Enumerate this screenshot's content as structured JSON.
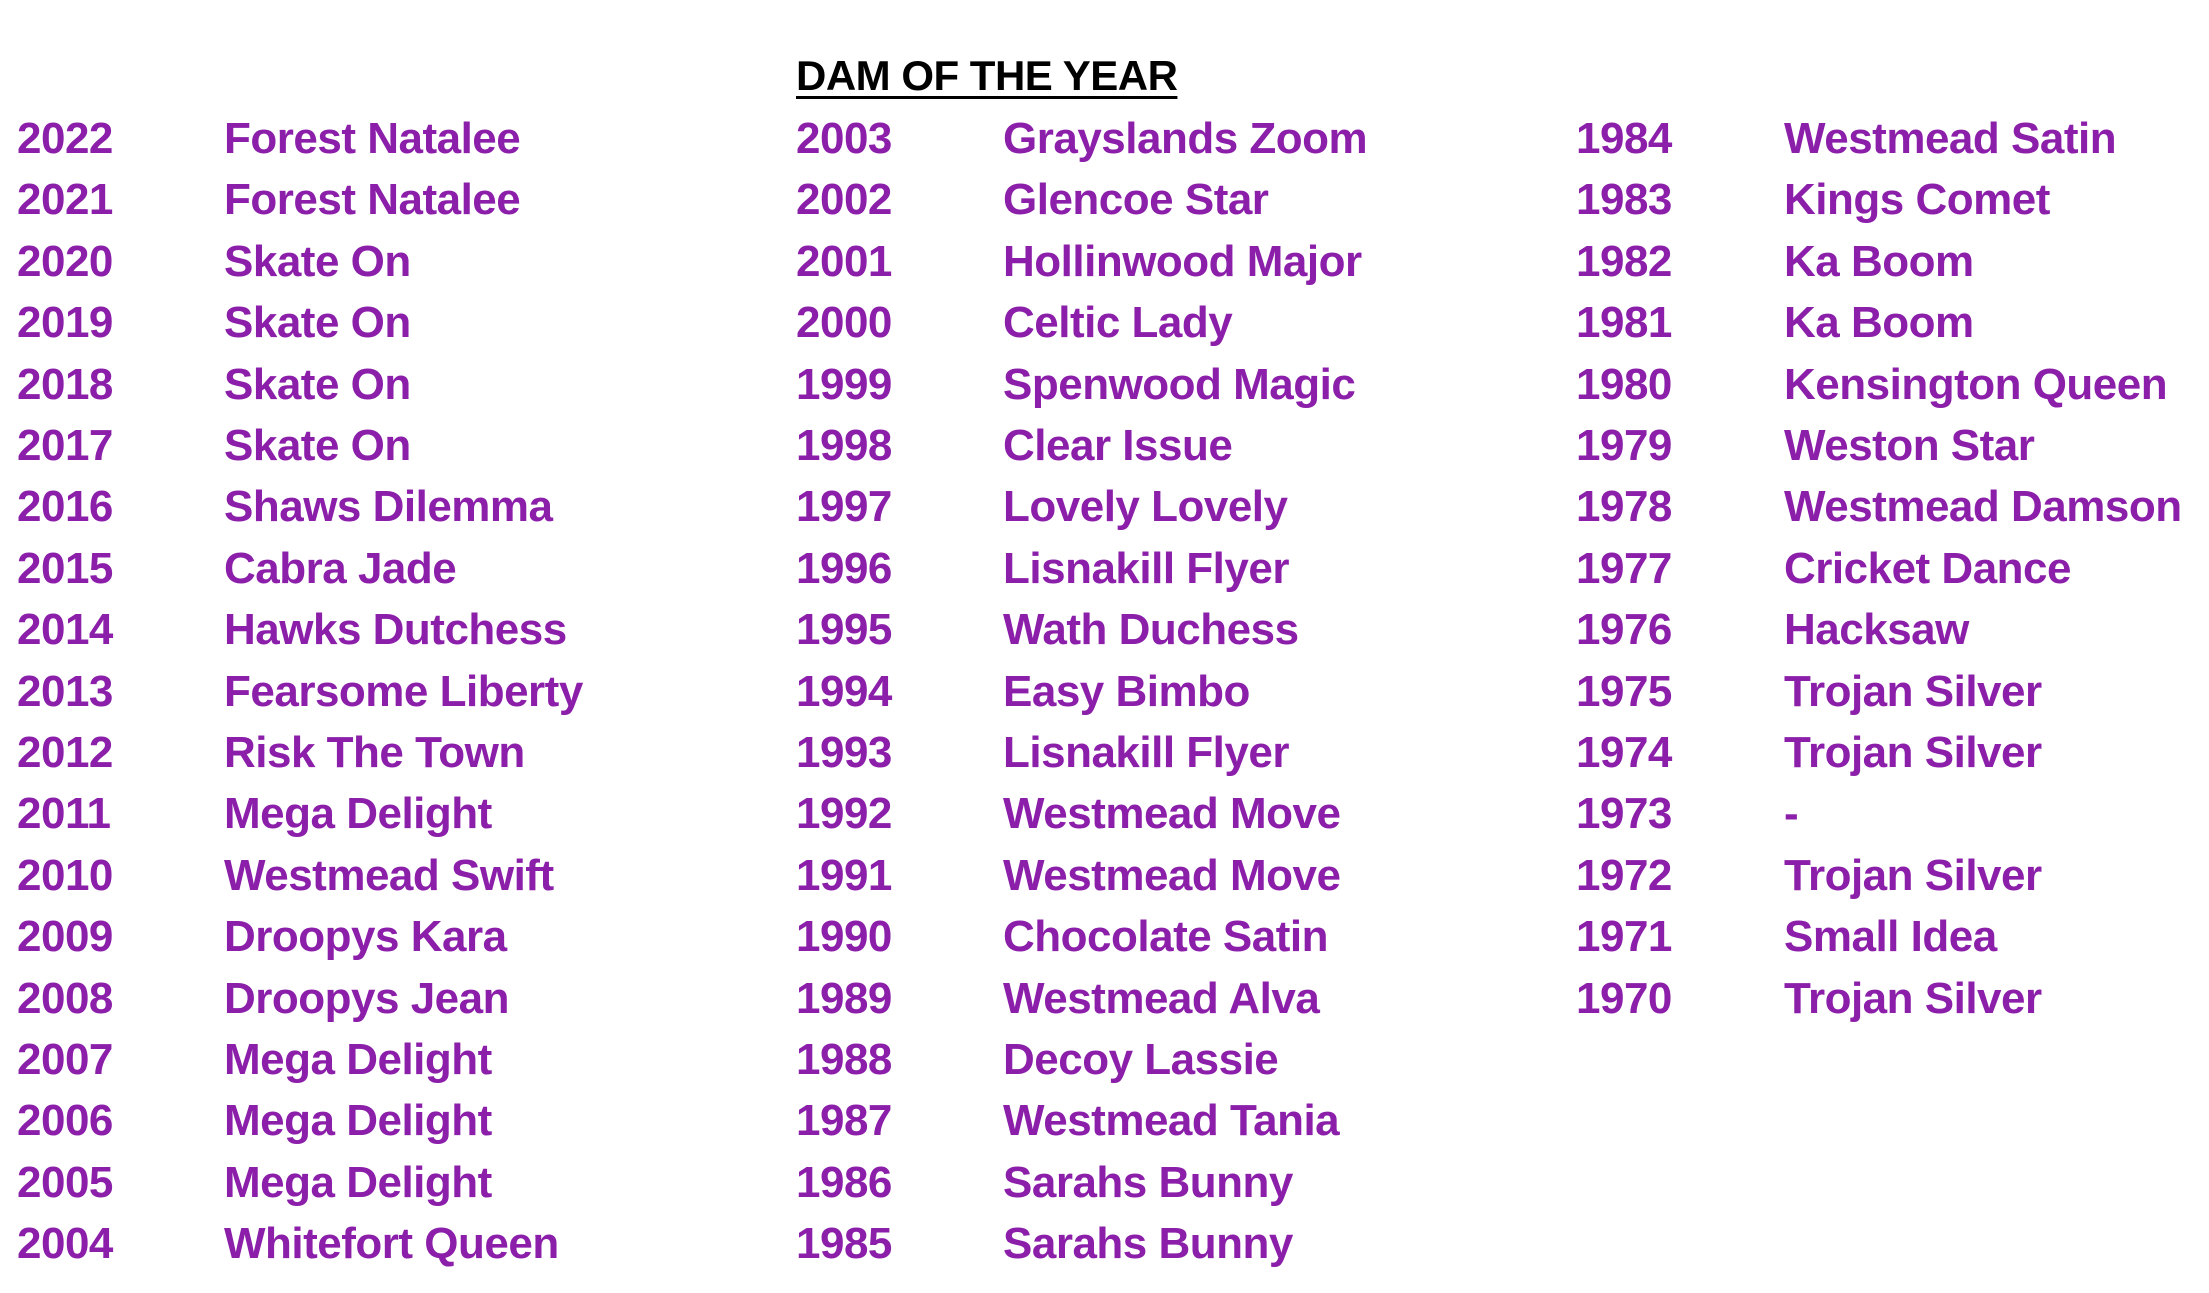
{
  "title": "DAM OF THE YEAR",
  "accent_color": "#8B1FA9",
  "columns": [
    [
      {
        "year": "2022",
        "name": "Forest Natalee"
      },
      {
        "year": "2021",
        "name": "Forest Natalee"
      },
      {
        "year": "2020",
        "name": "Skate On"
      },
      {
        "year": "2019",
        "name": "Skate On"
      },
      {
        "year": "2018",
        "name": "Skate On"
      },
      {
        "year": "2017",
        "name": "Skate On"
      },
      {
        "year": "2016",
        "name": "Shaws Dilemma"
      },
      {
        "year": "2015",
        "name": "Cabra Jade"
      },
      {
        "year": "2014",
        "name": "Hawks Dutchess"
      },
      {
        "year": "2013",
        "name": "Fearsome Liberty"
      },
      {
        "year": "2012",
        "name": "Risk The Town"
      },
      {
        "year": "2011",
        "name": "Mega Delight"
      },
      {
        "year": "2010",
        "name": "Westmead Swift"
      },
      {
        "year": "2009",
        "name": "Droopys Kara"
      },
      {
        "year": "2008",
        "name": "Droopys Jean"
      },
      {
        "year": "2007",
        "name": "Mega Delight"
      },
      {
        "year": "2006",
        "name": "Mega Delight"
      },
      {
        "year": "2005",
        "name": "Mega Delight"
      },
      {
        "year": "2004",
        "name": "Whitefort Queen"
      }
    ],
    [
      {
        "year": "2003",
        "name": "Grayslands Zoom"
      },
      {
        "year": "2002",
        "name": "Glencoe Star"
      },
      {
        "year": "2001",
        "name": "Hollinwood Major"
      },
      {
        "year": "2000",
        "name": "Celtic Lady"
      },
      {
        "year": "1999",
        "name": "Spenwood Magic"
      },
      {
        "year": "1998",
        "name": "Clear Issue"
      },
      {
        "year": "1997",
        "name": "Lovely Lovely"
      },
      {
        "year": "1996",
        "name": "Lisnakill Flyer"
      },
      {
        "year": "1995",
        "name": "Wath Duchess"
      },
      {
        "year": "1994",
        "name": "Easy Bimbo"
      },
      {
        "year": "1993",
        "name": "Lisnakill Flyer"
      },
      {
        "year": "1992",
        "name": "Westmead Move"
      },
      {
        "year": "1991",
        "name": "Westmead Move"
      },
      {
        "year": "1990",
        "name": "Chocolate Satin"
      },
      {
        "year": "1989",
        "name": "Westmead Alva"
      },
      {
        "year": "1988",
        "name": "Decoy Lassie"
      },
      {
        "year": "1987",
        "name": "Westmead Tania"
      },
      {
        "year": "1986",
        "name": "Sarahs Bunny"
      },
      {
        "year": "1985",
        "name": "Sarahs Bunny"
      }
    ],
    [
      {
        "year": "1984",
        "name": "Westmead Satin"
      },
      {
        "year": "1983",
        "name": "Kings Comet"
      },
      {
        "year": "1982",
        "name": "Ka Boom"
      },
      {
        "year": "1981",
        "name": "Ka Boom"
      },
      {
        "year": "1980",
        "name": "Kensington Queen"
      },
      {
        "year": "1979",
        "name": "Weston Star"
      },
      {
        "year": "1978",
        "name": "Westmead Damson"
      },
      {
        "year": "1977",
        "name": "Cricket Dance"
      },
      {
        "year": "1976",
        "name": "Hacksaw"
      },
      {
        "year": "1975",
        "name": "Trojan Silver"
      },
      {
        "year": "1974",
        "name": "Trojan Silver"
      },
      {
        "year": "1973",
        "name": "-"
      },
      {
        "year": "1972",
        "name": "Trojan Silver"
      },
      {
        "year": "1971",
        "name": "Small Idea"
      },
      {
        "year": "1970",
        "name": "Trojan Silver"
      }
    ]
  ]
}
